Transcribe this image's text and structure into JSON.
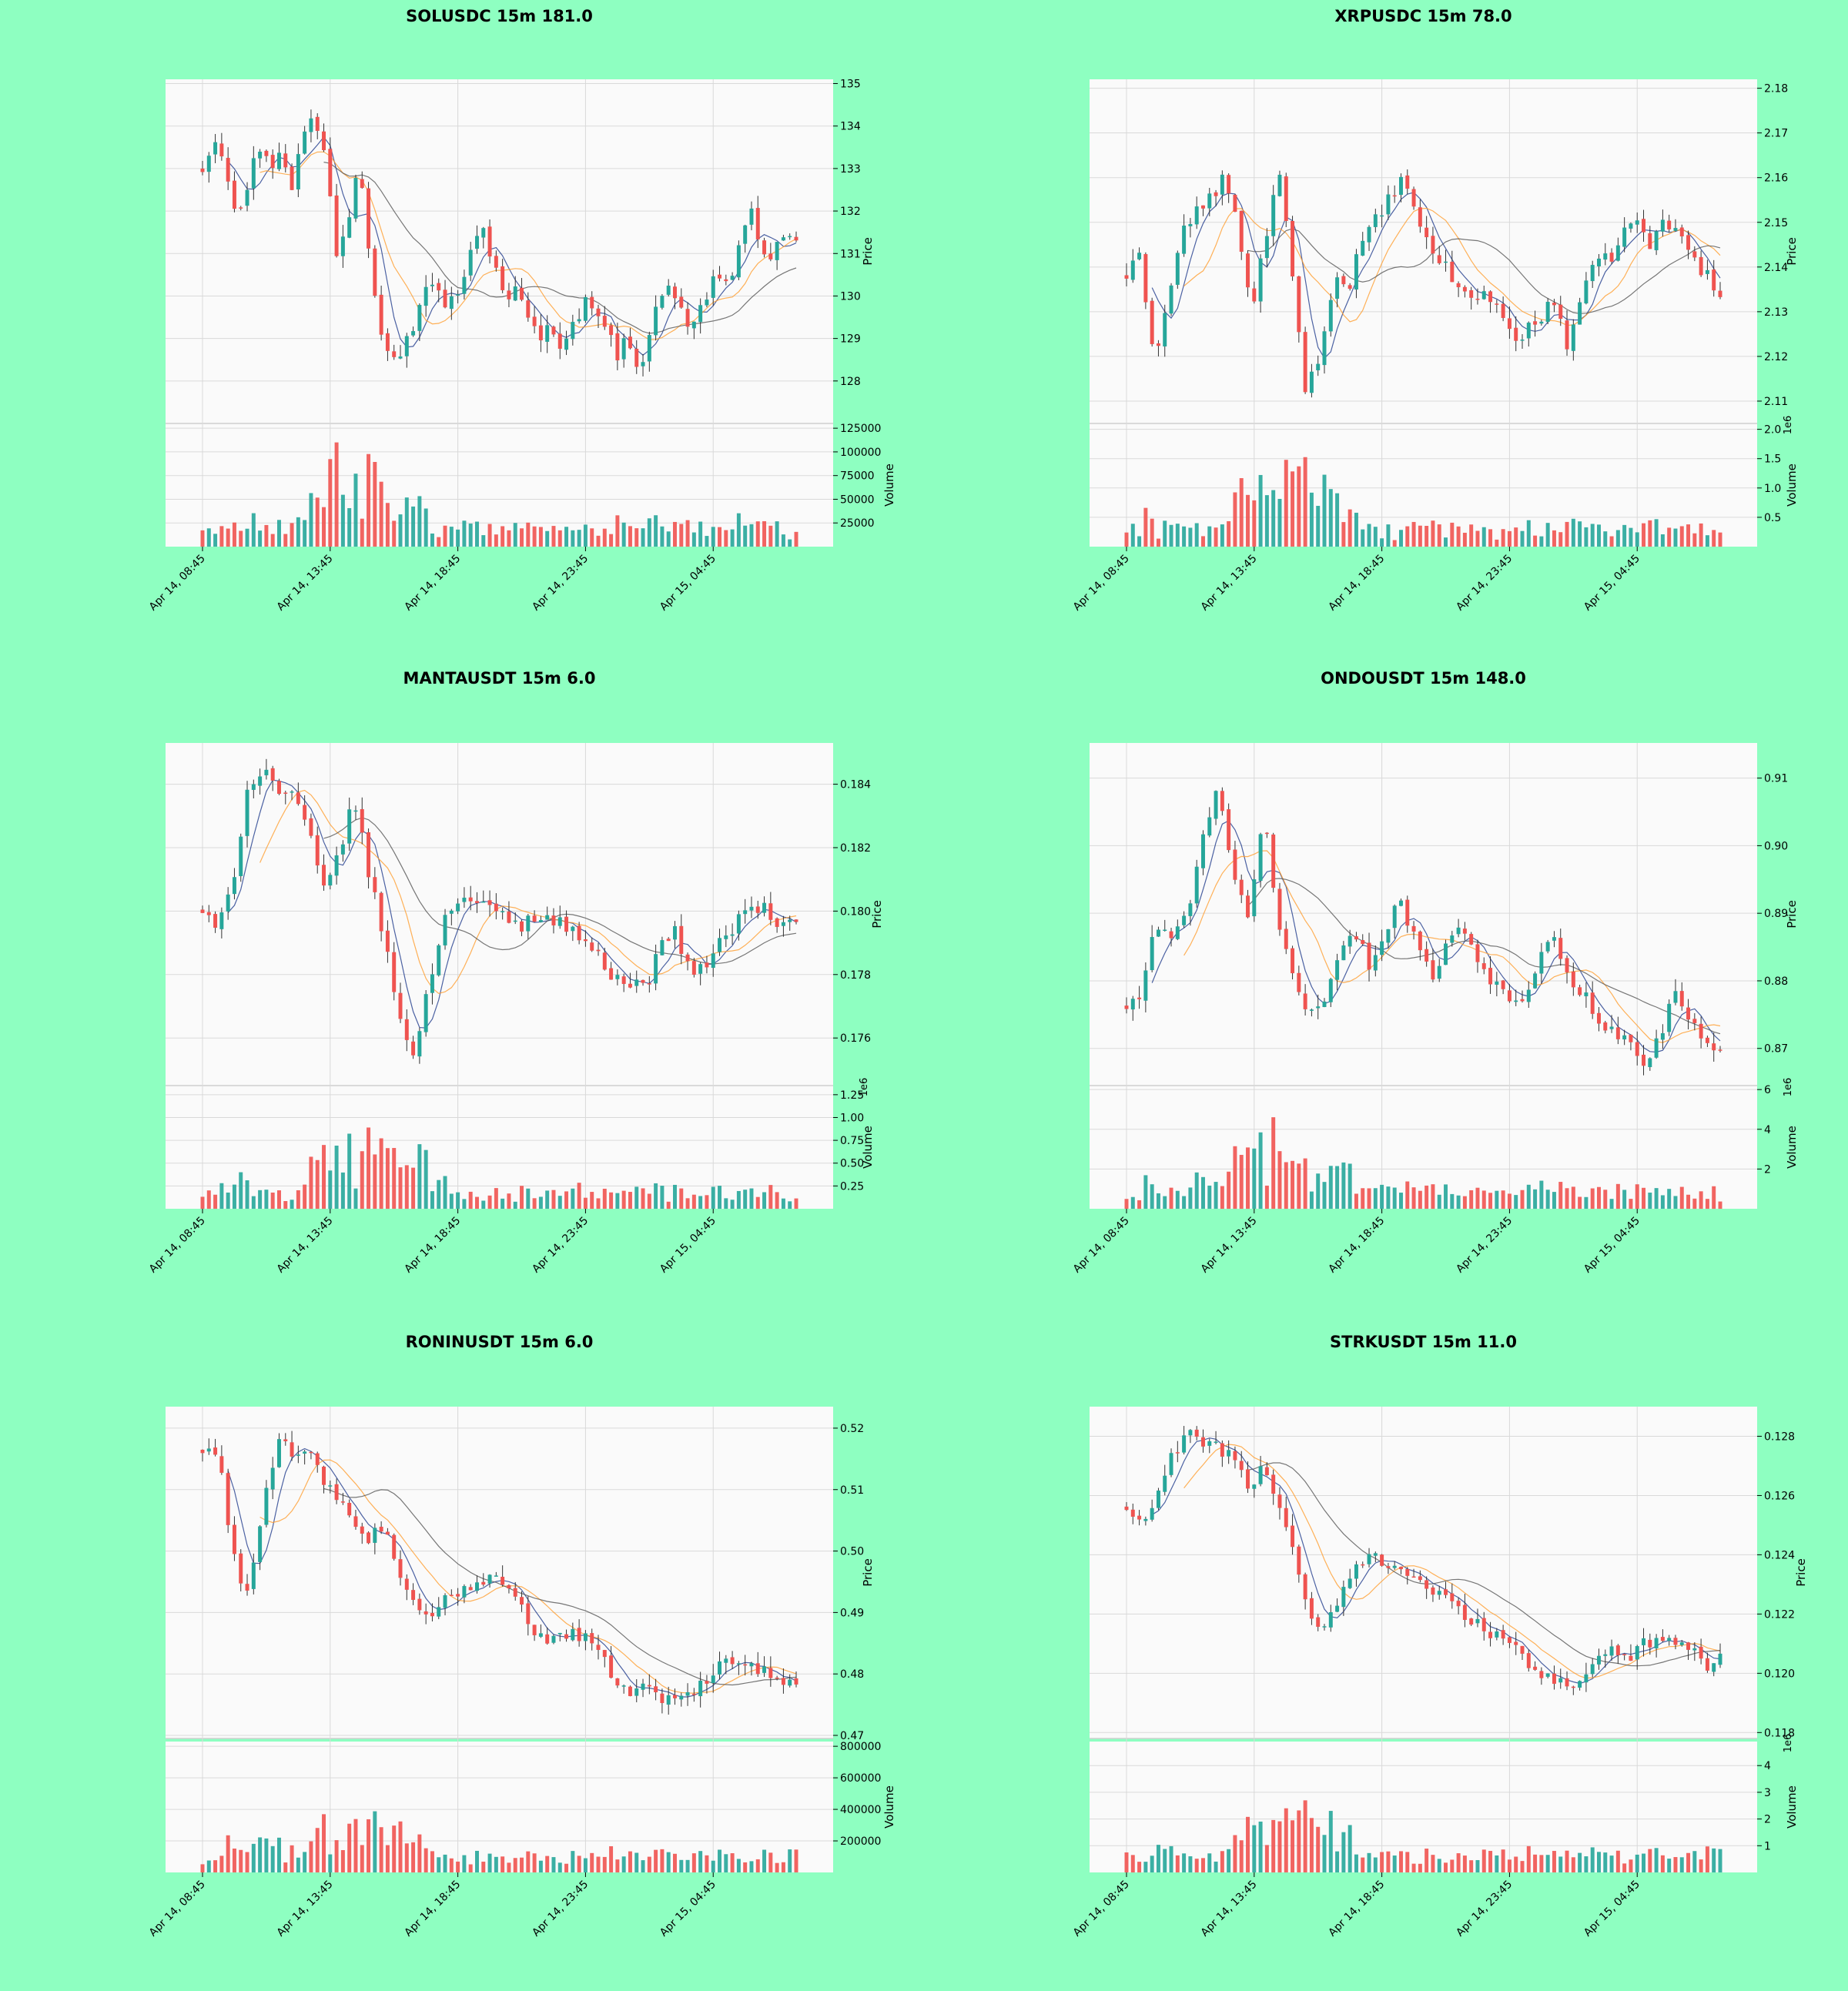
{
  "style": {
    "background": "#8effc1",
    "panel_bg": "#fafafa",
    "up_color": "#26a69a",
    "down_color": "#ef5350",
    "grid_color": "#d9d9d9",
    "ma_colors": [
      "#1f3b8c",
      "#ff9d2e",
      "#555555"
    ]
  },
  "chart_data": [
    {
      "type": "candlestick",
      "title": "SOLUSDC 15m 181.0",
      "ylabel": "Price",
      "volume_label": "Volume",
      "volume_scale": "",
      "ylim": [
        127.0,
        135.1
      ],
      "yticks": [
        "128",
        "129",
        "130",
        "131",
        "132",
        "133",
        "134",
        "135"
      ],
      "vol_max": 130000,
      "vol_ticks": [
        "25000",
        "50000",
        "75000",
        "100000",
        "125000"
      ],
      "vol_tick_values": [
        25000,
        50000,
        75000,
        100000,
        125000
      ],
      "x_ticks": [
        "Apr 14, 08:45",
        "Apr 14, 13:45",
        "Apr 14, 18:45",
        "Apr 14, 23:45",
        "Apr 15, 04:45"
      ],
      "x_tick_index": [
        0,
        20,
        40,
        60,
        80
      ],
      "close_path": [
        133.0,
        133.8,
        133.2,
        132.0,
        132.5,
        133.6,
        133.0,
        133.5,
        132.6,
        133.8,
        134.2,
        133.2,
        131.0,
        131.8,
        133.3,
        130.8,
        129.2,
        128.6,
        128.8,
        129.4,
        130.4,
        130.0,
        129.8,
        130.2,
        131.0,
        131.6,
        130.8,
        130.0,
        130.1,
        129.5,
        129.0,
        129.2,
        128.9,
        129.3,
        129.8,
        129.9,
        129.2,
        128.6,
        129.1,
        128.2,
        129.3,
        130.0,
        130.2,
        129.4,
        129.5,
        130.0,
        130.6,
        130.2,
        131.2,
        131.9,
        131.2,
        130.9,
        131.6,
        131.2
      ]
    },
    {
      "type": "candlestick",
      "title": "XRPUSDC 15m 78.0",
      "ylabel": "Price",
      "volume_label": "Volume",
      "volume_scale": "1e6",
      "ylim": [
        2.105,
        2.182
      ],
      "yticks": [
        "2.11",
        "2.12",
        "2.13",
        "2.14",
        "2.15",
        "2.16",
        "2.17",
        "2.18"
      ],
      "vol_max": 2100000,
      "vol_ticks": [
        "0.5",
        "1.0",
        "1.5",
        "2.0"
      ],
      "vol_tick_values": [
        500000,
        1000000,
        1500000,
        2000000
      ],
      "x_ticks": [
        "Apr 14, 08:45",
        "Apr 14, 13:45",
        "Apr 14, 18:45",
        "Apr 14, 23:45",
        "Apr 15, 04:45"
      ],
      "x_tick_index": [
        0,
        20,
        40,
        60,
        80
      ],
      "close_path": [
        2.138,
        2.142,
        2.12,
        2.132,
        2.148,
        2.152,
        2.155,
        2.16,
        2.15,
        2.13,
        2.145,
        2.162,
        2.138,
        2.112,
        2.12,
        2.138,
        2.135,
        2.145,
        2.15,
        2.155,
        2.16,
        2.15,
        2.145,
        2.14,
        2.136,
        2.132,
        2.135,
        2.13,
        2.124,
        2.126,
        2.128,
        2.133,
        2.122,
        2.135,
        2.14,
        2.142,
        2.148,
        2.15,
        2.145,
        2.15,
        2.148,
        2.142,
        2.138,
        2.135
      ]
    },
    {
      "type": "candlestick",
      "title": "MANTAUSDT 15m 6.0",
      "ylabel": "Price",
      "volume_label": "Volume",
      "volume_scale": "1e6",
      "ylim": [
        0.1745,
        0.1853
      ],
      "yticks": [
        "0.176",
        "0.178",
        "0.180",
        "0.182",
        "0.184"
      ],
      "vol_max": 1350000,
      "vol_ticks": [
        "0.25",
        "0.50",
        "0.75",
        "1.00",
        "1.25"
      ],
      "vol_tick_values": [
        250000,
        500000,
        750000,
        1000000,
        1250000
      ],
      "x_ticks": [
        "Apr 14, 08:45",
        "Apr 14, 13:45",
        "Apr 14, 18:45",
        "Apr 14, 23:45",
        "Apr 15, 04:45"
      ],
      "x_tick_index": [
        0,
        20,
        40,
        60,
        80
      ],
      "close_path": [
        0.18,
        0.1793,
        0.181,
        0.184,
        0.1845,
        0.1838,
        0.1835,
        0.1825,
        0.1805,
        0.182,
        0.1835,
        0.181,
        0.179,
        0.1765,
        0.1755,
        0.178,
        0.18,
        0.1805,
        0.1802,
        0.18,
        0.1798,
        0.1795,
        0.18,
        0.1797,
        0.1795,
        0.1792,
        0.1785,
        0.178,
        0.1778,
        0.1775,
        0.1788,
        0.1795,
        0.178,
        0.1783,
        0.179,
        0.1795,
        0.1803,
        0.18,
        0.1795,
        0.1798
      ]
    },
    {
      "type": "candlestick",
      "title": "ONDOUSDT 15m 148.0",
      "ylabel": "Price",
      "volume_label": "Volume",
      "volume_scale": "1e6",
      "ylim": [
        0.8645,
        0.9152
      ],
      "yticks": [
        "0.87",
        "0.88",
        "0.89",
        "0.90",
        "0.91"
      ],
      "vol_max": 6200000,
      "vol_ticks": [
        "2",
        "4",
        "6"
      ],
      "vol_tick_values": [
        2000000,
        4000000,
        6000000
      ],
      "x_ticks": [
        "Apr 14, 08:45",
        "Apr 14, 13:45",
        "Apr 14, 18:45",
        "Apr 14, 23:45",
        "Apr 15, 04:45"
      ],
      "x_tick_index": [
        0,
        20,
        40,
        60,
        80
      ],
      "close_path": [
        0.876,
        0.878,
        0.889,
        0.886,
        0.89,
        0.902,
        0.908,
        0.895,
        0.89,
        0.905,
        0.888,
        0.88,
        0.875,
        0.878,
        0.884,
        0.887,
        0.882,
        0.888,
        0.892,
        0.886,
        0.88,
        0.886,
        0.888,
        0.884,
        0.88,
        0.878,
        0.876,
        0.882,
        0.888,
        0.88,
        0.878,
        0.874,
        0.872,
        0.871,
        0.868,
        0.872,
        0.878,
        0.874,
        0.871,
        0.87
      ]
    },
    {
      "type": "candlestick",
      "title": "RONINUSDT 15m 6.0",
      "ylabel": "Price",
      "volume_label": "Volume",
      "volume_scale": "",
      "ylim": [
        0.4695,
        0.5235
      ],
      "yticks": [
        "0.47",
        "0.48",
        "0.49",
        "0.50",
        "0.51",
        "0.52"
      ],
      "vol_max": 830000,
      "vol_ticks": [
        "200000",
        "400000",
        "600000",
        "800000"
      ],
      "vol_tick_values": [
        200000,
        400000,
        600000,
        800000
      ],
      "x_ticks": [
        "Apr 14, 08:45",
        "Apr 14, 13:45",
        "Apr 14, 18:45",
        "Apr 14, 23:45",
        "Apr 15, 04:45"
      ],
      "x_tick_index": [
        0,
        20,
        40,
        60,
        80
      ],
      "close_path": [
        0.516,
        0.517,
        0.499,
        0.493,
        0.508,
        0.519,
        0.514,
        0.516,
        0.511,
        0.509,
        0.503,
        0.502,
        0.504,
        0.496,
        0.49,
        0.489,
        0.492,
        0.494,
        0.495,
        0.496,
        0.495,
        0.491,
        0.486,
        0.485,
        0.487,
        0.486,
        0.483,
        0.48,
        0.477,
        0.478,
        0.476,
        0.477,
        0.476,
        0.479,
        0.482,
        0.483,
        0.482,
        0.48,
        0.479,
        0.478
      ]
    },
    {
      "type": "candlestick",
      "title": "STRKUSDT 15m 11.0",
      "ylabel": "Price",
      "volume_label": "Volume",
      "volume_scale": "1e6",
      "ylim": [
        0.1178,
        0.129
      ],
      "yticks": [
        "0.118",
        "0.120",
        "0.122",
        "0.124",
        "0.126",
        "0.128"
      ],
      "vol_max": 4900000,
      "vol_ticks": [
        "1",
        "2",
        "3",
        "4"
      ],
      "vol_tick_values": [
        1000000,
        2000000,
        3000000,
        4000000
      ],
      "x_ticks": [
        "Apr 14, 08:45",
        "Apr 14, 13:45",
        "Apr 14, 18:45",
        "Apr 14, 23:45",
        "Apr 15, 04:45"
      ],
      "x_tick_index": [
        0,
        20,
        40,
        60,
        80
      ],
      "close_path": [
        0.1255,
        0.125,
        0.1258,
        0.1275,
        0.128,
        0.1278,
        0.1277,
        0.1272,
        0.1262,
        0.127,
        0.1258,
        0.124,
        0.122,
        0.1215,
        0.1225,
        0.1235,
        0.124,
        0.1238,
        0.1236,
        0.1232,
        0.1228,
        0.1225,
        0.122,
        0.1217,
        0.1214,
        0.121,
        0.1205,
        0.12,
        0.1198,
        0.1195,
        0.12,
        0.1204,
        0.1208,
        0.1203,
        0.121,
        0.1213,
        0.1212,
        0.1208,
        0.1203,
        0.1205
      ]
    }
  ]
}
